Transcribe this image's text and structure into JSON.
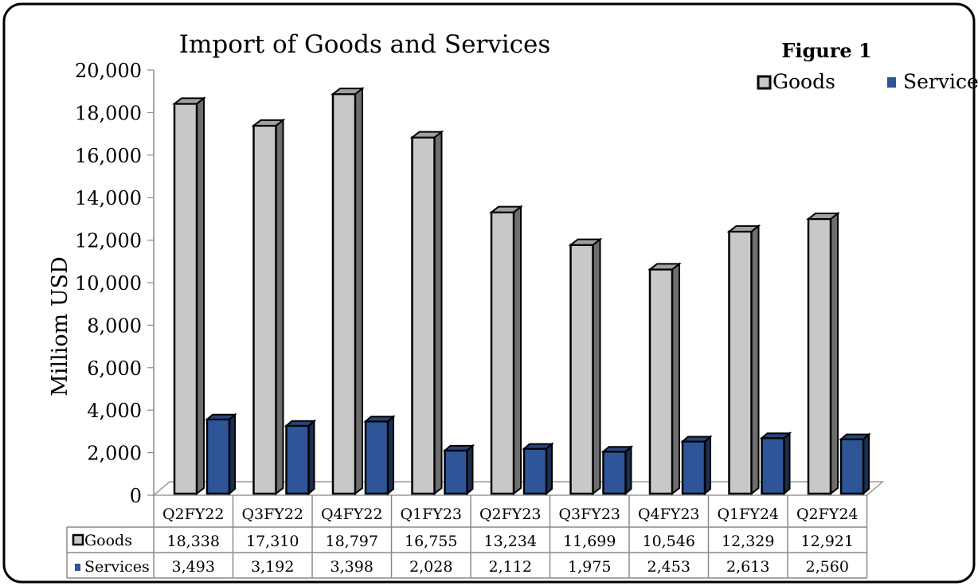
{
  "chart_data": {
    "type": "bar",
    "title": "Import of Goods and Services",
    "figure_label": "Figure 1",
    "ylabel": "Milliom USD",
    "ylim": [
      0,
      20000
    ],
    "yticks": [
      "0",
      "2,000",
      "4,000",
      "6,000",
      "8,000",
      "10,000",
      "12,000",
      "14,000",
      "16,000",
      "18,000",
      "20,000"
    ],
    "categories": [
      "Q2FY22",
      "Q3FY22",
      "Q4FY22",
      "Q1FY23",
      "Q2FY23",
      "Q3FY23",
      "Q4FY23",
      "Q1FY24",
      "Q2FY24"
    ],
    "series": [
      {
        "name": "Goods",
        "color": "#c8c8c8",
        "values": [
          18338,
          17310,
          18797,
          16755,
          13234,
          11699,
          10546,
          12329,
          12921
        ],
        "labels": [
          "18,338",
          "17,310",
          "18,797",
          "16,755",
          "13,234",
          "11,699",
          "10,546",
          "12,329",
          "12,921"
        ]
      },
      {
        "name": "Services",
        "color": "#2e5597",
        "values": [
          3493,
          3192,
          3398,
          2028,
          2112,
          1975,
          2453,
          2613,
          2560
        ],
        "labels": [
          "3,493",
          "3,192",
          "3,398",
          "2,028",
          "2,112",
          "1,975",
          "2,453",
          "2,613",
          "2,560"
        ]
      }
    ],
    "legend_position": "top-right",
    "grid": false,
    "data_table": true
  }
}
